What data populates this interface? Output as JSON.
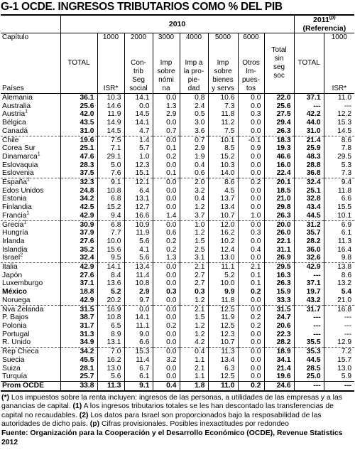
{
  "header": {
    "title": "G-1 OCDE. INGRESOS TRIBUTARIOS COMO % DEL PIB",
    "year_2010": "2010",
    "year_2011": "2011",
    "year_2011_note": "(p)",
    "reference": "(Referencia)",
    "row_label_top": "Capítulo",
    "row_label_bottom": "Países",
    "columns": [
      {
        "lines": [
          "TOTAL"
        ],
        "bold": true
      },
      {
        "code": "1000",
        "lines": [
          "ISR*"
        ]
      },
      {
        "code": "2000",
        "lines": [
          "Con-",
          "trib",
          "Seg",
          "social"
        ]
      },
      {
        "code": "3000",
        "lines": [
          "Imp",
          "sobre",
          "nómi",
          "na"
        ]
      },
      {
        "code": "4000",
        "lines": [
          "Imp a",
          "la pro-",
          "pie-",
          "dad"
        ]
      },
      {
        "code": "5000",
        "lines": [
          "Imp",
          "sobre",
          "bienes",
          "y servs"
        ]
      },
      {
        "code": "6000",
        "lines": [
          "Otros",
          "Im-",
          "pues-",
          "tos"
        ]
      },
      {
        "lines": [
          "Total",
          "sin",
          "seg",
          "soc"
        ],
        "bold": true
      },
      {
        "lines": [
          "TOTAL"
        ],
        "bold": true
      },
      {
        "code": "1000",
        "lines": [
          "ISR*"
        ]
      }
    ]
  },
  "rows": [
    {
      "country": "Alemania",
      "values": [
        "36.1",
        "10.3",
        "14.1",
        "0.0",
        "0.8",
        "10.6",
        "0.0",
        "22.0",
        "37.1",
        "11.0"
      ]
    },
    {
      "country": "Australia",
      "values": [
        "25.6",
        "14.6",
        "0.0",
        "1.3",
        "2.4",
        "7.3",
        "0.0",
        "25.6",
        "---",
        "---"
      ]
    },
    {
      "country": "Austria",
      "note": "1",
      "values": [
        "42.0",
        "11.9",
        "14.5",
        "2.9",
        "0.5",
        "11.8",
        "0.3",
        "27.5",
        "42.2",
        "12.2"
      ]
    },
    {
      "country": "Bélgica",
      "values": [
        "43.5",
        "14.9",
        "14.1",
        "0.0",
        "3.0",
        "11.2",
        "0.0",
        "29.4",
        "44.0",
        "15.3"
      ]
    },
    {
      "country": "Canadá",
      "values": [
        "31.0",
        "14.5",
        "4.7",
        "0.7",
        "3.6",
        "7.5",
        "0.0",
        "26.3",
        "31.0",
        "14.5"
      ]
    },
    {
      "country": "Chile",
      "values": [
        "19.6",
        "7.5",
        "1.4",
        "0.0",
        "0.7",
        "10.1",
        "-0.1",
        "18.3",
        "21.4",
        "8.6"
      ]
    },
    {
      "country": "Corea Sur",
      "values": [
        "25.1",
        "7.1",
        "5.7",
        "0.1",
        "2.9",
        "8.5",
        "0.9",
        "19.3",
        "25.9",
        "7.8"
      ]
    },
    {
      "country": "Dinamarca",
      "note": "1",
      "values": [
        "47.6",
        "29.1",
        "1.0",
        "0.2",
        "1.9",
        "15.2",
        "0.0",
        "46.6",
        "48.3",
        "29.5"
      ]
    },
    {
      "country": "Eslovaquia",
      "values": [
        "28.3",
        "5.0",
        "12.3",
        "0.0",
        "0.4",
        "10.3",
        "0.0",
        "16.0",
        "28.8",
        "5.3"
      ]
    },
    {
      "country": "Eslovenia",
      "values": [
        "37.5",
        "7.6",
        "15.1",
        "0.1",
        "0.6",
        "14.0",
        "0.0",
        "22.4",
        "36.8",
        "7.3"
      ]
    },
    {
      "country": "España",
      "note": "1",
      "values": [
        "32.3",
        "9.1",
        "12.1",
        "0.0",
        "2.0",
        "8.6",
        "0.2",
        "20.1",
        "32.4",
        "9.4"
      ]
    },
    {
      "country": "Edos Unidos",
      "values": [
        "24.8",
        "10.8",
        "6.4",
        "0.0",
        "3.2",
        "4.5",
        "0.0",
        "18.5",
        "25.1",
        "11.8"
      ]
    },
    {
      "country": "Estonia",
      "values": [
        "34.2",
        "6.8",
        "13.1",
        "0.0",
        "0.4",
        "13.7",
        "0.0",
        "21.0",
        "32.8",
        "6.6"
      ]
    },
    {
      "country": "Finlandia",
      "values": [
        "42.5",
        "15.2",
        "12.7",
        "0.0",
        "1.2",
        "13.4",
        "0.0",
        "29.8",
        "43.4",
        "15.5"
      ]
    },
    {
      "country": "Francia",
      "note": "1",
      "values": [
        "42.9",
        "9.4",
        "16.6",
        "1.4",
        "3.7",
        "10.7",
        "1.0",
        "26.3",
        "44.5",
        "10.1"
      ]
    },
    {
      "country": "Grecia",
      "note": "1",
      "values": [
        "30.9",
        "6.8",
        "10.9",
        "0.0",
        "1.0",
        "12.0",
        "0.0",
        "20.0",
        "31.2",
        "6.9"
      ]
    },
    {
      "country": "Hungría",
      "values": [
        "37.9",
        "7.7",
        "11.9",
        "0.6",
        "1.2",
        "16.2",
        "0.3",
        "26.0",
        "35.7",
        "6.1"
      ]
    },
    {
      "country": "Irlanda",
      "values": [
        "27.6",
        "10.0",
        "5.6",
        "0.2",
        "1.5",
        "10.2",
        "0.0",
        "22.1",
        "28.2",
        "11.3"
      ]
    },
    {
      "country": "Islandia",
      "values": [
        "35.2",
        "15.6",
        "4.1",
        "0.2",
        "2.5",
        "12.4",
        "0.4",
        "31.1",
        "36.0",
        "16.4"
      ]
    },
    {
      "country": "Israel",
      "note": "2",
      "values": [
        "32.4",
        "9.5",
        "5.6",
        "1.3",
        "3.1",
        "13.0",
        "0.0",
        "26.9",
        "32.6",
        "9.8"
      ]
    },
    {
      "country": "Italia",
      "values": [
        "42.9",
        "14.1",
        "13.4",
        "0.0",
        "2.1",
        "11.1",
        "2.1",
        "29.5",
        "42.9",
        "13.8"
      ]
    },
    {
      "country": "Japón",
      "values": [
        "27.6",
        "8.4",
        "11.4",
        "0.0",
        "2.7",
        "5.2",
        "0.1",
        "16.3",
        "---",
        "8.6"
      ]
    },
    {
      "country": "Luxemburgo",
      "values": [
        "37.1",
        "13.6",
        "10.8",
        "0.0",
        "2.7",
        "10.0",
        "0.1",
        "26.3",
        "37.1",
        "13.2"
      ]
    },
    {
      "country": "México",
      "bold": true,
      "values": [
        "18.8",
        "5.2",
        "2.9",
        "0.3",
        "0.3",
        "9.9",
        "0.2",
        "15.9",
        "19.7",
        "5.4"
      ]
    },
    {
      "country": "Noruega",
      "values": [
        "42.9",
        "20.2",
        "9.7",
        "0.0",
        "1.2",
        "11.8",
        "0.0",
        "33.3",
        "43.2",
        "21.0"
      ]
    },
    {
      "country": "Nva Zelanda",
      "values": [
        "31.5",
        "16.9",
        "0.0",
        "0.0",
        "2.1",
        "12.5",
        "0.0",
        "31.5",
        "31.7",
        "16.8"
      ]
    },
    {
      "country": "P. Bajos",
      "values": [
        "38.7",
        "10.8",
        "14.1",
        "0.0",
        "1.5",
        "11.9",
        "0.2",
        "24.7",
        "---",
        "---"
      ]
    },
    {
      "country": "Polonia",
      "values": [
        "31.7",
        "6.5",
        "11.1",
        "0.2",
        "1.2",
        "12.5",
        "0.2",
        "20.6",
        "---",
        "---"
      ]
    },
    {
      "country": "Portugal",
      "values": [
        "31.3",
        "8.9",
        "9.0",
        "0.0",
        "1.2",
        "12.3",
        "0.0",
        "22.3",
        "---",
        "---"
      ]
    },
    {
      "country": "R. Unido",
      "values": [
        "34.9",
        "13.1",
        "6.6",
        "0.0",
        "4.2",
        "10.7",
        "0.0",
        "28.2",
        "35.5",
        "12.9"
      ]
    },
    {
      "country": "Rep Checa",
      "values": [
        "34.2",
        "7.0",
        "15.3",
        "0.0",
        "0.4",
        "11.3",
        "0.0",
        "18.9",
        "35.3",
        "7.2"
      ]
    },
    {
      "country": "Suecia",
      "values": [
        "45.5",
        "16.2",
        "11.4",
        "3.2",
        "1.1",
        "13.4",
        "0.0",
        "34.1",
        "44.5",
        "15.7"
      ]
    },
    {
      "country": "Suiza",
      "values": [
        "28.1",
        "13.0",
        "6.7",
        "0.0",
        "2.1",
        "6.3",
        "0.0",
        "21.4",
        "28.5",
        "13.0"
      ]
    },
    {
      "country": "Turquía",
      "values": [
        "25.7",
        "5.6",
        "6.1",
        "0.0",
        "1.1",
        "12.5",
        "0.0",
        "19.6",
        "25.0",
        "5.9"
      ]
    },
    {
      "country": "Prom OCDE",
      "bold": true,
      "values": [
        "33.8",
        "11.3",
        "9.1",
        "0.4",
        "1.8",
        "11.0",
        "0.2",
        "24.6",
        "---",
        "---"
      ]
    }
  ],
  "notes": [
    {
      "marker": "(*)",
      "text": "Los impuestos sobre la renta incluyen: ingresos de las personas, a utilidades de las empresas y a las ganancias de capital."
    },
    {
      "marker": "(1)",
      "text": "A los ingresos tributarios totales se les han descontado las transferencias de capital no recaudables."
    },
    {
      "marker": "(2)",
      "text": "Los datos para Israel son proporcionados bajo la resposabilidad de las autoridades de dicho país."
    },
    {
      "marker": "(p)",
      "text": "Cifras provisionales. Posibles inexactitudes por redondeo"
    }
  ],
  "source": {
    "label": "Fuente:",
    "text": "Organización para la Cooperación y el Desarrollo Económico (OCDE), Revenue Statistics 2012"
  }
}
